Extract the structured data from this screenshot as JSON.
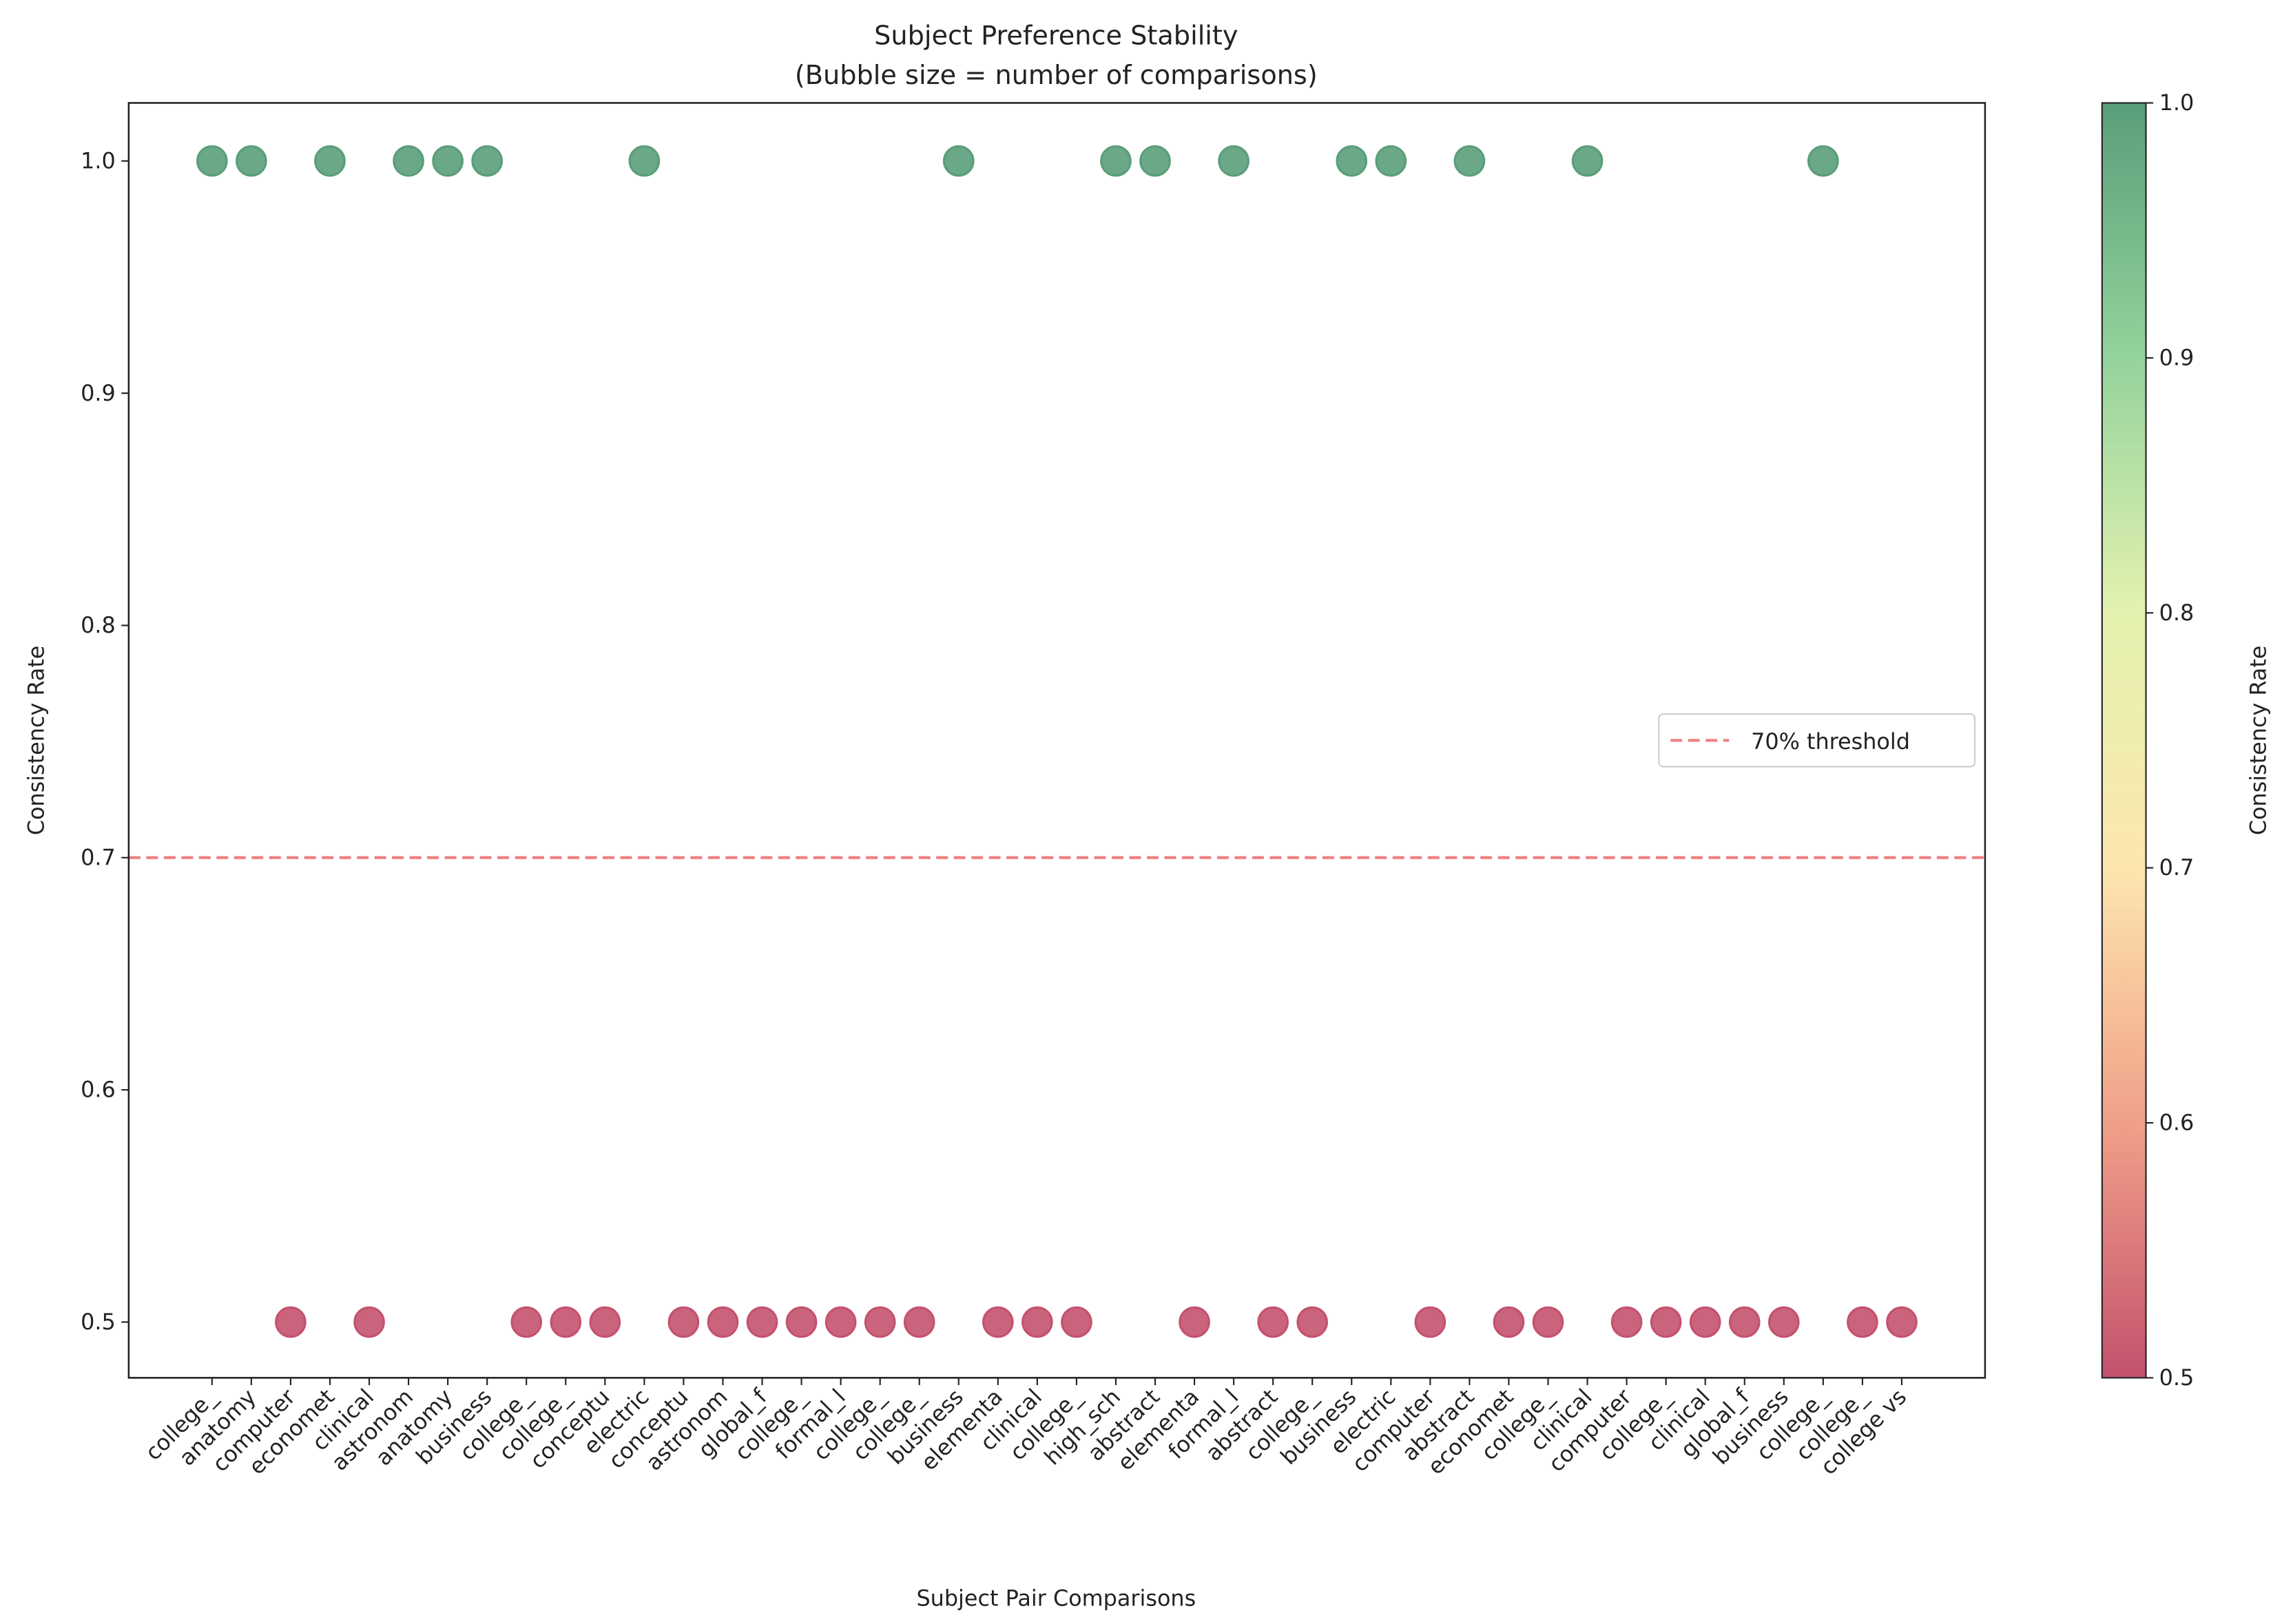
{
  "chart_data": {
    "type": "scatter",
    "title": "Subject Preference Stability",
    "subtitle": "(Bubble size = number of comparisons)",
    "x_label": "Subject Pair Comparisons",
    "y_label": "Consistency Rate",
    "categories": [
      "college_",
      "anatomy",
      "computer",
      "economet",
      "clinical",
      "astronom",
      "anatomy",
      "business",
      "college_",
      "college_",
      "conceptu",
      "electric",
      "conceptu",
      "astronom",
      "global_f",
      "college_",
      "formal_l",
      "college_",
      "college_",
      "business",
      "elementa",
      "clinical",
      "college_",
      "high_sch",
      "abstract",
      "elementa",
      "formal_l",
      "abstract",
      "college_",
      "business",
      "electric",
      "computer",
      "abstract",
      "economet",
      "college_",
      "clinical",
      "computer",
      "college_",
      "clinical",
      "global_f",
      "business",
      "college_",
      "college_",
      "college vs"
    ],
    "values": [
      1.0,
      1.0,
      0.5,
      1.0,
      0.5,
      1.0,
      1.0,
      1.0,
      0.5,
      0.5,
      0.5,
      1.0,
      0.5,
      0.5,
      0.5,
      0.5,
      0.5,
      0.5,
      0.5,
      1.0,
      0.5,
      0.5,
      0.5,
      1.0,
      1.0,
      0.5,
      1.0,
      0.5,
      0.5,
      1.0,
      1.0,
      0.5,
      1.0,
      0.5,
      0.5,
      1.0,
      0.5,
      0.5,
      0.5,
      0.5,
      0.5,
      1.0,
      0.5,
      0.5
    ],
    "ylim": [
      0.476,
      1.025
    ],
    "yticks": [
      {
        "value": 0.5,
        "label": "0.5"
      },
      {
        "value": 0.6,
        "label": "0.6"
      },
      {
        "value": 0.7,
        "label": "0.7"
      },
      {
        "value": 0.8,
        "label": "0.8"
      },
      {
        "value": 0.9,
        "label": "0.9"
      },
      {
        "value": 1.0,
        "label": "1.0"
      }
    ],
    "threshold": {
      "value": 0.7,
      "label": "70% threshold",
      "color": "#f08080"
    },
    "colorbar": {
      "label": "Consistency Rate",
      "lim": [
        0.5,
        1.0
      ],
      "ticks": [
        {
          "value": 0.5,
          "label": "0.5"
        },
        {
          "value": 0.6,
          "label": "0.6"
        },
        {
          "value": 0.7,
          "label": "0.7"
        },
        {
          "value": 0.8,
          "label": "0.8"
        },
        {
          "value": 0.9,
          "label": "0.9"
        },
        {
          "value": 1.0,
          "label": "1.0"
        }
      ],
      "colors": [
        "#c4526e",
        "#f0a088",
        "#fde6b0",
        "#e4f2b0",
        "#94d39c",
        "#5a9e7a"
      ]
    },
    "legend": "center right"
  }
}
